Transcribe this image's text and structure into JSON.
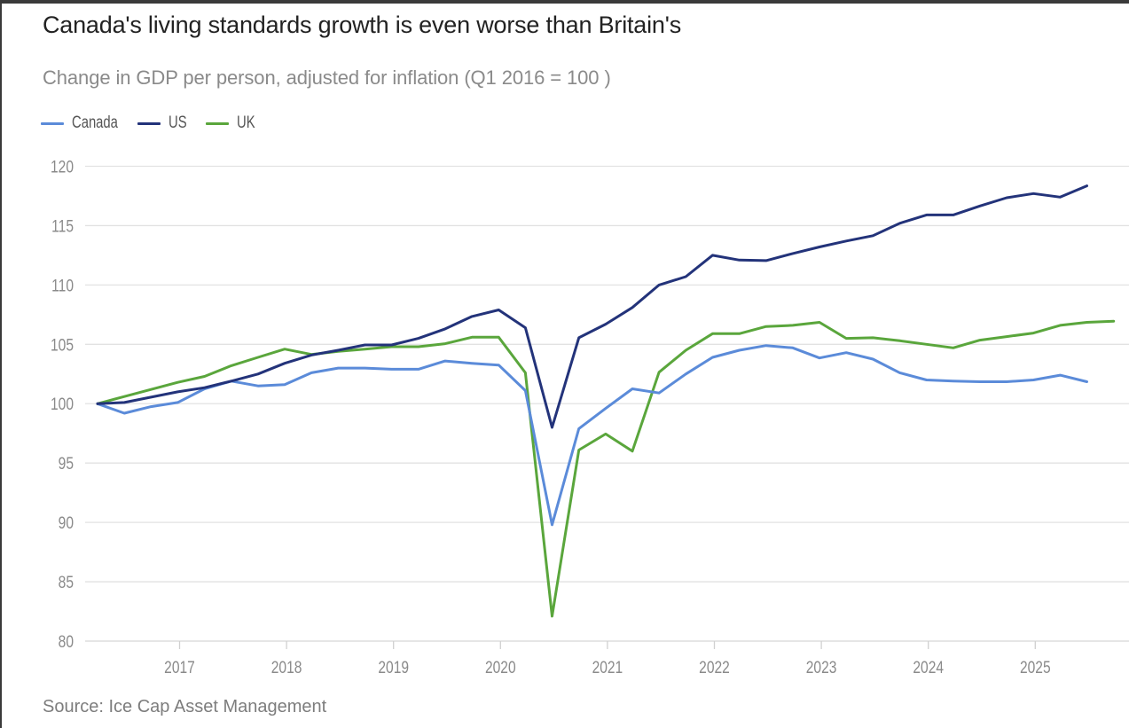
{
  "header": {
    "title": "Canada's living standards growth is even worse than Britain's",
    "subtitle": "Change in GDP per person, adjusted for inflation (Q1 2016 = 100 )"
  },
  "legend": [
    {
      "label": "Canada",
      "color": "#5b8bd9"
    },
    {
      "label": "US",
      "color": "#23337a"
    },
    {
      "label": "UK",
      "color": "#5aa63c"
    }
  ],
  "footer": {
    "source": "Source: Ice Cap Asset Management"
  },
  "chart_data": {
    "type": "line",
    "title": "Canada's living standards growth is even worse than Britain's",
    "subtitle": "Change in GDP per person, adjusted for inflation (Q1 2016 = 100 )",
    "xlabel": "",
    "ylabel": "",
    "x_unit": "quarter",
    "x_start": "Q1 2016",
    "x": [
      "2016Q1",
      "2016Q2",
      "2016Q3",
      "2016Q4",
      "2017Q1",
      "2017Q2",
      "2017Q3",
      "2017Q4",
      "2018Q1",
      "2018Q2",
      "2018Q3",
      "2018Q4",
      "2019Q1",
      "2019Q2",
      "2019Q3",
      "2019Q4",
      "2020Q1",
      "2020Q2",
      "2020Q3",
      "2020Q4",
      "2021Q1",
      "2021Q2",
      "2021Q3",
      "2021Q4",
      "2022Q1",
      "2022Q2",
      "2022Q3",
      "2022Q4",
      "2023Q1",
      "2023Q2",
      "2023Q3",
      "2023Q4",
      "2024Q1",
      "2024Q2",
      "2024Q3",
      "2024Q4",
      "2025Q1",
      "2025Q2",
      "2025Q3"
    ],
    "xticks": [
      "2017",
      "2018",
      "2019",
      "2020",
      "2021",
      "2022",
      "2023",
      "2024",
      "2025"
    ],
    "yticks": [
      80,
      85,
      90,
      95,
      100,
      105,
      110,
      115,
      120
    ],
    "ylim": [
      80,
      120
    ],
    "grid": "horizontal",
    "legend_position": "top-left",
    "series": [
      {
        "name": "Canada",
        "color": "#5b8bd9",
        "values": [
          100,
          99.2,
          99.75,
          100.1,
          101.25,
          101.9,
          101.5,
          101.6,
          102.6,
          103.0,
          103.0,
          102.9,
          102.9,
          103.6,
          103.4,
          103.25,
          101.1,
          89.8,
          97.9,
          99.6,
          101.25,
          100.9,
          102.5,
          103.9,
          104.5,
          104.9,
          104.7,
          103.85,
          104.3,
          103.75,
          102.6,
          102.0,
          101.9,
          101.85,
          101.85,
          102.0,
          102.4,
          101.85
        ]
      },
      {
        "name": "US",
        "color": "#23337a",
        "values": [
          100,
          100.1,
          100.55,
          101.0,
          101.35,
          101.9,
          102.5,
          103.4,
          104.1,
          104.5,
          104.95,
          104.95,
          105.5,
          106.3,
          107.35,
          107.9,
          106.4,
          98.0,
          105.55,
          106.7,
          108.1,
          110.0,
          110.7,
          112.5,
          112.1,
          112.05,
          112.65,
          113.2,
          113.7,
          114.15,
          115.2,
          115.9,
          115.9,
          116.65,
          117.35,
          117.7,
          117.4,
          118.35
        ]
      },
      {
        "name": "UK",
        "color": "#5aa63c",
        "values": [
          100,
          100.6,
          101.2,
          101.8,
          102.3,
          103.2,
          103.9,
          104.6,
          104.15,
          104.4,
          104.6,
          104.8,
          104.8,
          105.05,
          105.6,
          105.6,
          102.6,
          82.1,
          96.1,
          97.45,
          96.0,
          102.65,
          104.5,
          105.9,
          105.9,
          106.5,
          106.6,
          106.85,
          105.5,
          105.55,
          105.3,
          105.0,
          104.7,
          105.35,
          105.65,
          105.95,
          106.6,
          106.85,
          106.95
        ]
      }
    ],
    "source": "Source: Ice Cap Asset Management"
  }
}
